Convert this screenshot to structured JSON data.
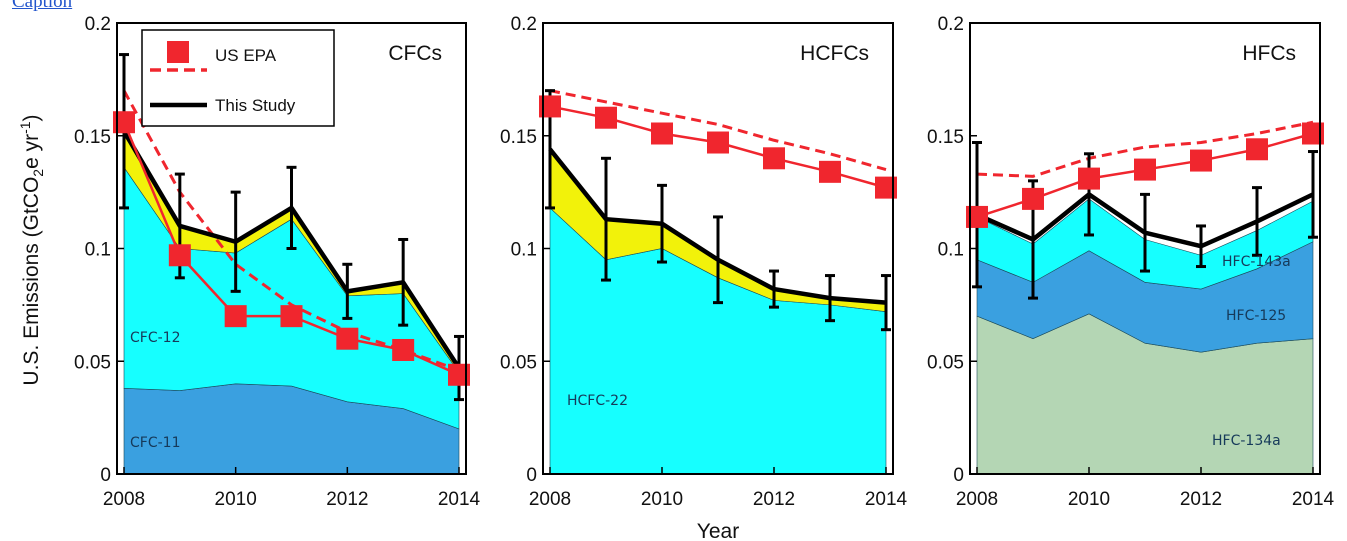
{
  "caption_link": "Caption",
  "chart_data": [
    {
      "type": "area",
      "title": "CFCs",
      "x": [
        2008,
        2009,
        2010,
        2011,
        2012,
        2013,
        2014
      ],
      "xlim": [
        2008,
        2014
      ],
      "ylim": [
        0,
        0.2
      ],
      "xticks": [
        "2008",
        "2010",
        "2012",
        "2014"
      ],
      "yticks": [
        "0",
        "0.05",
        "0.1",
        "0.15",
        "0.2"
      ],
      "stacked_areas": [
        {
          "name": "CFC-11",
          "color": "#3aa0e0",
          "values": [
            0.038,
            0.037,
            0.04,
            0.039,
            0.032,
            0.029,
            0.02
          ]
        },
        {
          "name": "CFC-12",
          "color": "#16ffff",
          "values": [
            0.098,
            0.063,
            0.058,
            0.074,
            0.047,
            0.051,
            0.025
          ]
        },
        {
          "name": "",
          "color": "#f2f20a",
          "values": [
            0.016,
            0.01,
            0.005,
            0.005,
            0.002,
            0.005,
            0.002
          ]
        }
      ],
      "this_study": {
        "values": [
          0.152,
          0.11,
          0.103,
          0.118,
          0.081,
          0.085,
          0.047
        ],
        "err": [
          0.034,
          0.023,
          0.022,
          0.018,
          0.012,
          0.019,
          0.014
        ]
      },
      "epa_points": [
        0.156,
        0.097,
        0.07,
        0.07,
        0.06,
        0.055,
        0.044
      ],
      "epa_dashed": [
        0.17,
        0.125,
        0.093,
        0.075,
        0.063,
        0.055,
        0.046
      ],
      "area_labels_visible": [
        "CFC-12",
        "CFC-11"
      ]
    },
    {
      "type": "area",
      "title": "HCFCs",
      "x": [
        2008,
        2009,
        2010,
        2011,
        2012,
        2013,
        2014
      ],
      "xlim": [
        2008,
        2014
      ],
      "ylim": [
        0,
        0.2
      ],
      "xticks": [
        "2008",
        "2010",
        "2012",
        "2014"
      ],
      "yticks": [
        "0",
        "0.05",
        "0.1",
        "0.15",
        "0.2"
      ],
      "stacked_areas": [
        {
          "name": "HCFC-22",
          "color": "#16ffff",
          "values": [
            0.118,
            0.095,
            0.1,
            0.087,
            0.077,
            0.075,
            0.072
          ]
        },
        {
          "name": "",
          "color": "#f2f20a",
          "values": [
            0.026,
            0.018,
            0.011,
            0.008,
            0.005,
            0.003,
            0.004
          ]
        }
      ],
      "this_study": {
        "values": [
          0.144,
          0.113,
          0.111,
          0.095,
          0.082,
          0.078,
          0.076
        ],
        "err": [
          0.026,
          0.027,
          0.017,
          0.019,
          0.008,
          0.01,
          0.012
        ]
      },
      "epa_points": [
        0.163,
        0.158,
        0.151,
        0.147,
        0.14,
        0.134,
        0.127
      ],
      "epa_dashed": [
        0.17,
        0.165,
        0.16,
        0.155,
        0.148,
        0.142,
        0.135
      ],
      "area_labels_visible": [
        "HCFC-22"
      ]
    },
    {
      "type": "area",
      "title": "HFCs",
      "x": [
        2008,
        2009,
        2010,
        2011,
        2012,
        2013,
        2014
      ],
      "xlim": [
        2008,
        2014
      ],
      "ylim": [
        0,
        0.2
      ],
      "xticks": [
        "2008",
        "2010",
        "2012",
        "2014"
      ],
      "yticks": [
        "0",
        "0.05",
        "0.1",
        "0.15",
        "0.2"
      ],
      "stacked_areas": [
        {
          "name": "HFC-134a",
          "color": "#b4d6b4",
          "values": [
            0.07,
            0.06,
            0.071,
            0.058,
            0.054,
            0.058,
            0.06
          ]
        },
        {
          "name": "HFC-125",
          "color": "#3aa0e0",
          "values": [
            0.025,
            0.025,
            0.028,
            0.027,
            0.028,
            0.033,
            0.043
          ]
        },
        {
          "name": "HFC-143a",
          "color": "#16ffff",
          "values": [
            0.019,
            0.017,
            0.023,
            0.019,
            0.015,
            0.017,
            0.018
          ]
        }
      ],
      "this_study": {
        "values": [
          0.115,
          0.104,
          0.124,
          0.107,
          0.101,
          0.112,
          0.124
        ],
        "err": [
          0.032,
          0.026,
          0.018,
          0.017,
          0.009,
          0.015,
          0.019
        ]
      },
      "epa_points": [
        0.114,
        0.122,
        0.131,
        0.135,
        0.139,
        0.144,
        0.151
      ],
      "epa_dashed": [
        0.133,
        0.132,
        0.14,
        0.145,
        0.147,
        0.151,
        0.156
      ],
      "area_labels_visible": [
        "HFC-143a",
        "HFC-125",
        "HFC-134a"
      ]
    }
  ],
  "legend": {
    "us_epa": "US EPA",
    "this_study": "This Study"
  },
  "ylabel_prefix": "U.S. Emissions (GtCO",
  "ylabel_sub": "2",
  "ylabel_mid": "e yr",
  "ylabel_sup": "-1",
  "ylabel_suffix": ")",
  "xlabel": "Year",
  "colors": {
    "epa_red": "#f0262e",
    "this_study": "#000000",
    "cyan": "#16ffff",
    "blue": "#3aa0e0",
    "yellow": "#f2f20a",
    "sage": "#b4d6b4"
  }
}
